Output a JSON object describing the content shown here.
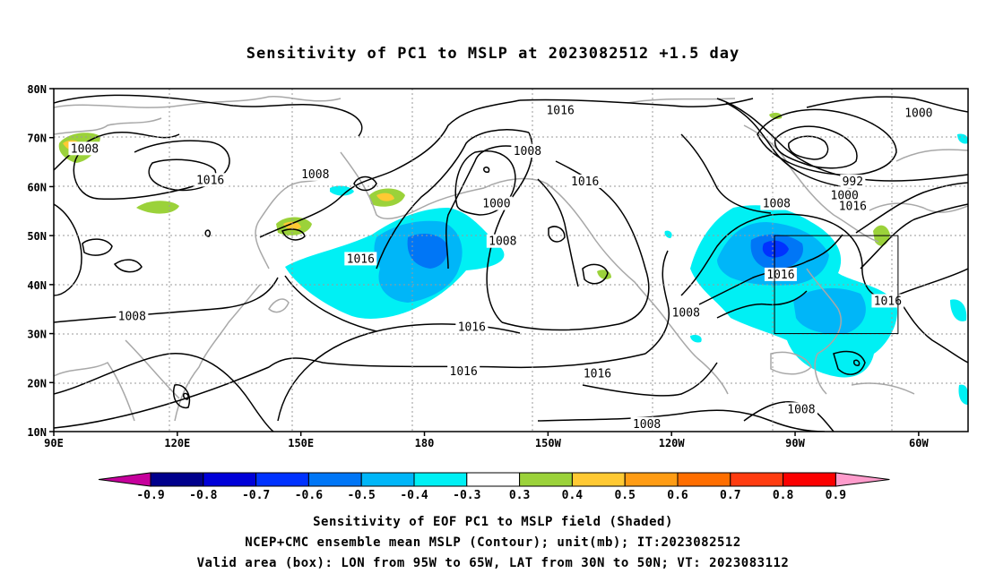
{
  "title": "Sensitivity of PC1 to MSLP at 2023082512 +1.5 day",
  "lat_labels": [
    "10N",
    "20N",
    "30N",
    "40N",
    "50N",
    "60N",
    "70N",
    "80N"
  ],
  "lon_labels": [
    "90E",
    "120E",
    "150E",
    "180",
    "150W",
    "120W",
    "90W",
    "60W"
  ],
  "contour_labels": [
    {
      "text": "1016",
      "lon": -147,
      "lat": 75.5
    },
    {
      "text": "1008",
      "lon": -155,
      "lat": 67.2
    },
    {
      "text": "1000",
      "lon": -60,
      "lat": 75
    },
    {
      "text": "992",
      "lon": -76,
      "lat": 61
    },
    {
      "text": "1000",
      "lon": -78,
      "lat": 58.2
    },
    {
      "text": "1008",
      "lon": 97.5,
      "lat": 67.7
    },
    {
      "text": "1016",
      "lon": 128,
      "lat": 61.3
    },
    {
      "text": "1008",
      "lon": 153.5,
      "lat": 62.5
    },
    {
      "text": "1000",
      "lon": -162.5,
      "lat": 56.5
    },
    {
      "text": "1016",
      "lon": -141,
      "lat": 61
    },
    {
      "text": "1008",
      "lon": -161,
      "lat": 48.8
    },
    {
      "text": "1008",
      "lon": -94.5,
      "lat": 56.5
    },
    {
      "text": "1016",
      "lon": -76,
      "lat": 56
    },
    {
      "text": "1016",
      "lon": 164.5,
      "lat": 45.2
    },
    {
      "text": "1016",
      "lon": -93.5,
      "lat": 42
    },
    {
      "text": "1016",
      "lon": -67.5,
      "lat": 36.6
    },
    {
      "text": "1008",
      "lon": -116.5,
      "lat": 34.2
    },
    {
      "text": "1008",
      "lon": 109,
      "lat": 33.5
    },
    {
      "text": "1016",
      "lon": -168.5,
      "lat": 31.3
    },
    {
      "text": "1016",
      "lon": -170.5,
      "lat": 22.2
    },
    {
      "text": "1016",
      "lon": -138,
      "lat": 21.8
    },
    {
      "text": "1008",
      "lon": -126,
      "lat": 11.5
    },
    {
      "text": "1008",
      "lon": -88.5,
      "lat": 14.5
    }
  ],
  "valid_box": {
    "lon_from": -95,
    "lon_to": -65,
    "lat_from": 30,
    "lat_to": 50
  },
  "colorbar": {
    "labels": [
      "-0.9",
      "-0.8",
      "-0.7",
      "-0.6",
      "-0.5",
      "-0.4",
      "-0.3",
      "0.3",
      "0.4",
      "0.5",
      "0.6",
      "0.7",
      "0.8",
      "0.9"
    ],
    "colors": [
      "#00008c",
      "#0000d8",
      "#0032ff",
      "#0076f6",
      "#00b6f8",
      "#00f0f4",
      "#ffffff",
      "#9bd23a",
      "#ffc933",
      "#ff9c14",
      "#ff6e00",
      "#ff3c10",
      "#fb0000"
    ],
    "low_arrow_color": "#c6009c",
    "high_arrow_color": "#ff9ccc"
  },
  "captions": {
    "line1": "Sensitivity of EOF PC1 to MSLP field (Shaded)",
    "line2": "NCEP+CMC ensemble mean MSLP (Contour); unit(mb); IT:2023082512",
    "line3": "Valid area (box): LON from 95W to 65W, LAT from 30N to 50N; VT: 2023083112"
  }
}
